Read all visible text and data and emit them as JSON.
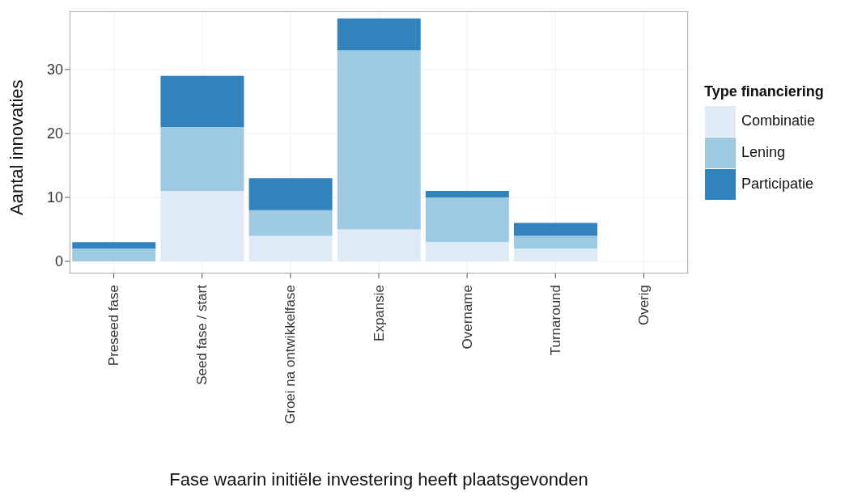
{
  "chart_data": {
    "type": "bar",
    "stacked": true,
    "xlabel": "Fase waarin initiële investering heeft plaatsgevonden",
    "ylabel": "Aantal innovaties",
    "legend_title": "Type financiering",
    "legend": "right",
    "grid": true,
    "categories": [
      "Preseed fase",
      "Seed fase / start",
      "Groei na ontwikkelfase",
      "Expansie",
      "Overname",
      "Turnaround",
      "Overig"
    ],
    "series": [
      {
        "name": "Combinatie",
        "color": "#deebf7",
        "values": [
          0,
          11,
          4,
          5,
          3,
          2,
          0
        ]
      },
      {
        "name": "Lening",
        "color": "#9ecae1",
        "values": [
          2,
          10,
          4,
          28,
          7,
          2,
          0
        ]
      },
      {
        "name": "Participatie",
        "color": "#3182bd",
        "values": [
          1,
          8,
          5,
          5,
          1,
          2,
          0
        ]
      }
    ],
    "ylim": [
      -1.9,
      39.1
    ],
    "yticks": [
      0,
      10,
      20,
      30
    ]
  }
}
